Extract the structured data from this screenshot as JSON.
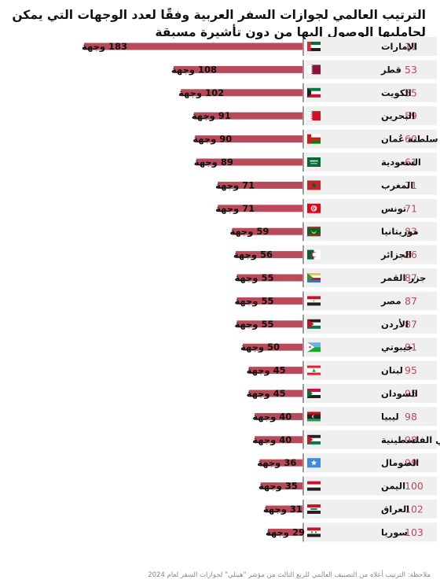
{
  "title": "الترتيب العالمي لجوازات السفر العربية وفقًا لعدد الوجهات التي يمكن لحامليها الوصول إليها من دون تأشيرة مسبقة",
  "note": "ملاحظة: الترتيب أعلاه من التصنيف العالمي للربع الثالث من مؤشر \"هينلي\" لجوازات السفر لعام 2024",
  "colors": {
    "bar": "#b94a5a",
    "rank": "#b94a5a",
    "row_bg": "#efefef"
  },
  "chart_data": {
    "type": "bar",
    "orientation": "horizontal",
    "value_suffix": "وجهة",
    "xlim": [
      0,
      183
    ],
    "categories": [
      "الإمارات",
      "قطر",
      "الكويت",
      "البحرين",
      "سلطنة عُمان",
      "السعودية",
      "المغرب",
      "تونس",
      "موريتانيا",
      "الجزائر",
      "جزر القمر",
      "مصر",
      "الأردن",
      "جيبوتي",
      "لبنان",
      "السودان",
      "ليبيا",
      "الأراضي الفلسطينية",
      "الصومال",
      "اليمن",
      "العراق",
      "سوريا"
    ],
    "values": [
      183,
      108,
      102,
      91,
      90,
      89,
      71,
      71,
      59,
      56,
      55,
      55,
      55,
      50,
      45,
      45,
      40,
      40,
      36,
      35,
      31,
      29
    ],
    "ranks": [
      11,
      53,
      55,
      59,
      60,
      61,
      71,
      71,
      83,
      86,
      87,
      87,
      87,
      91,
      95,
      95,
      98,
      98,
      99,
      100,
      102,
      103
    ],
    "flags": [
      "uae-flag",
      "qatar-flag",
      "kuwait-flag",
      "bahrain-flag",
      "oman-flag",
      "saudi-flag",
      "morocco-flag",
      "tunisia-flag",
      "mauritania-flag",
      "algeria-flag",
      "comoros-flag",
      "egypt-flag",
      "jordan-flag",
      "djibouti-flag",
      "lebanon-flag",
      "sudan-flag",
      "libya-flag",
      "palestine-flag",
      "somalia-flag",
      "yemen-flag",
      "iraq-flag",
      "syria-flag"
    ]
  }
}
